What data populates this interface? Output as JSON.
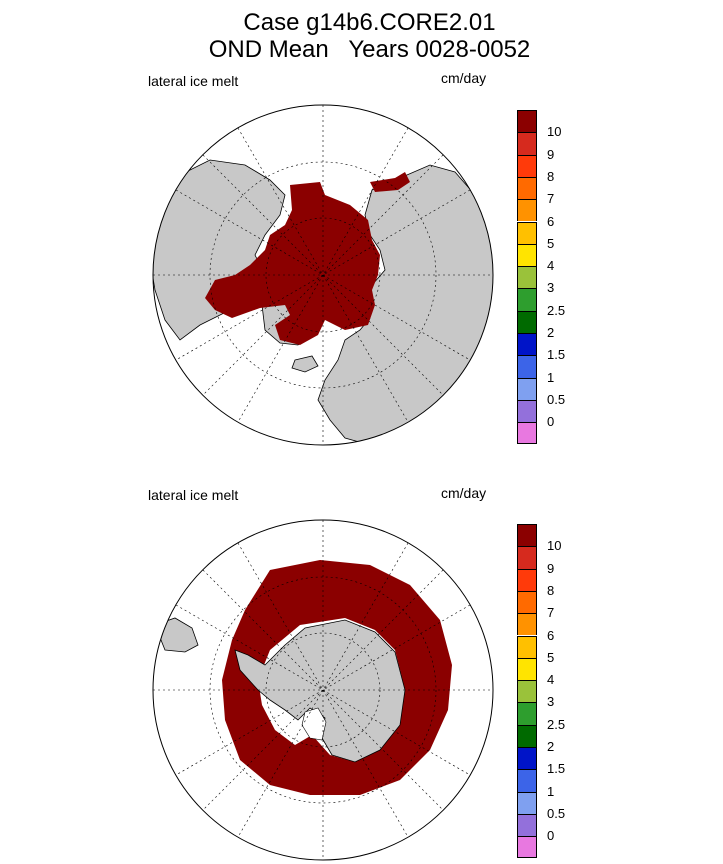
{
  "title_line1": "Case g14b6.CORE2.01",
  "title_line2": "OND Mean   Years 0028-0052",
  "panels": [
    {
      "variable_label": "lateral ice melt",
      "units_label": "cm/day",
      "hemisphere": "north"
    },
    {
      "variable_label": "lateral ice melt",
      "units_label": "cm/day",
      "hemisphere": "south"
    }
  ],
  "colorbar": {
    "levels": [
      "10",
      "9",
      "8",
      "7",
      "6",
      "5",
      "4",
      "3",
      "2.5",
      "2",
      "1.5",
      "1",
      "0.5",
      "0"
    ],
    "colors_top_to_bottom": [
      "#8B0000",
      "#D62A1E",
      "#FF3A0A",
      "#FF6A00",
      "#FF9200",
      "#FFC000",
      "#FFE400",
      "#9AC23A",
      "#2E9E2E",
      "#006A00",
      "#0014C8",
      "#3C64E8",
      "#7FA0F0",
      "#9370DB",
      "#E878E0"
    ]
  },
  "colors": {
    "land": "#C8C8C8",
    "melt_max": "#8B0000",
    "ocean": "#FFFFFF"
  }
}
